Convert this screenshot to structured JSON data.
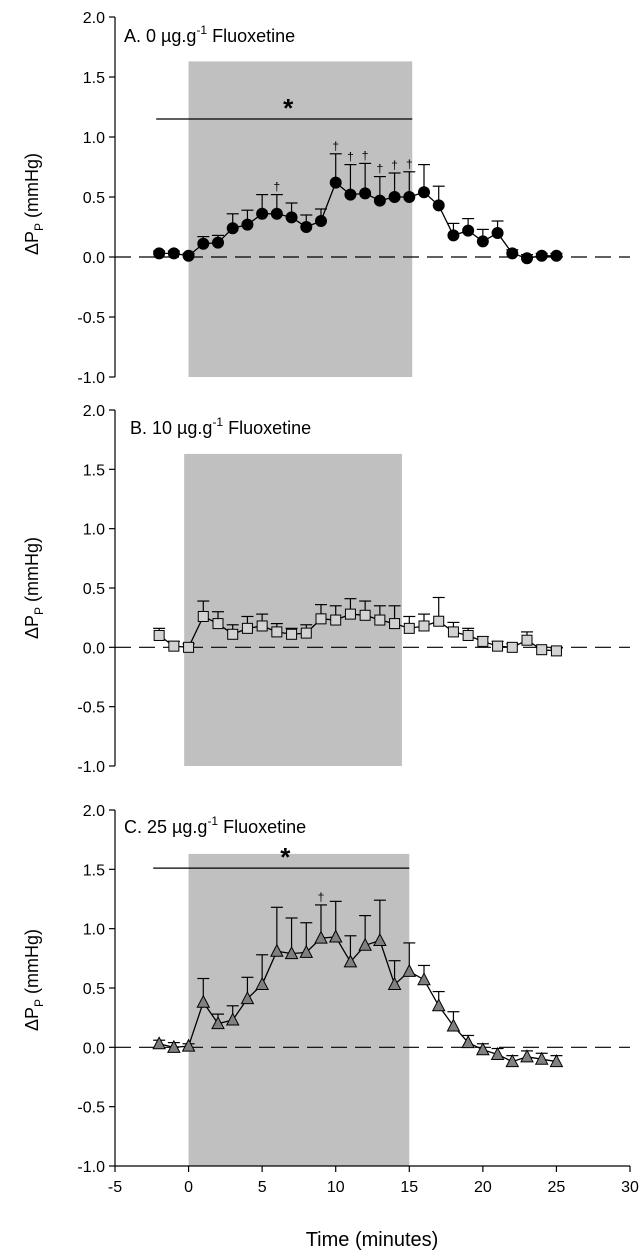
{
  "chart_data": [
    {
      "type": "line",
      "title_prefix": "A. 0 ",
      "title_unit": "µg.g",
      "title_sup": "-1",
      "title_suffix": " Fluoxetine",
      "ylabel_main": "ΔP",
      "ylabel_sub": "P",
      "ylabel_tail": " (mmHg)",
      "ylim": [
        -1.0,
        2.0
      ],
      "yticks": [
        "-1.0",
        "-0.5",
        "0.0",
        "0.5",
        "1.0",
        "1.5",
        "2.0"
      ],
      "shaded_region": [
        0,
        15.2
      ],
      "significance_bar": {
        "x": [
          -2.2,
          15.2
        ],
        "y": 1.15,
        "label": "*"
      },
      "dagger_label": "†",
      "marker": "circle",
      "marker_fill": "#000000",
      "x": [
        -2,
        -1,
        0,
        1,
        2,
        3,
        4,
        5,
        6,
        7,
        8,
        9,
        10,
        11,
        12,
        13,
        14,
        15,
        16,
        17,
        18,
        19,
        20,
        21,
        22,
        23,
        24,
        25
      ],
      "y": [
        0.03,
        0.03,
        0.01,
        0.11,
        0.12,
        0.24,
        0.27,
        0.36,
        0.36,
        0.33,
        0.25,
        0.3,
        0.62,
        0.52,
        0.53,
        0.47,
        0.5,
        0.5,
        0.54,
        0.43,
        0.18,
        0.22,
        0.13,
        0.2,
        0.03,
        -0.01,
        0.01,
        0.01
      ],
      "err": [
        0.02,
        0.02,
        0.02,
        0.06,
        0.06,
        0.12,
        0.12,
        0.16,
        0.16,
        0.12,
        0.1,
        0.1,
        0.24,
        0.25,
        0.25,
        0.2,
        0.2,
        0.21,
        0.23,
        0.16,
        0.1,
        0.1,
        0.1,
        0.1,
        0.03,
        0.03,
        0.02,
        0.02
      ],
      "dagger_x": [
        6,
        10,
        11,
        12,
        13,
        14,
        15
      ]
    },
    {
      "type": "line",
      "title_prefix": "B. 10 ",
      "title_unit": "µg.g",
      "title_sup": "-1",
      "title_suffix": " Fluoxetine",
      "ylabel_main": "ΔP",
      "ylabel_sub": "P",
      "ylabel_tail": " (mmHg)",
      "ylim": [
        -1.0,
        2.0
      ],
      "yticks": [
        "-1.0",
        "-0.5",
        "0.0",
        "0.5",
        "1.0",
        "1.5",
        "2.0"
      ],
      "shaded_region": [
        -0.3,
        14.5
      ],
      "significance_bar": null,
      "marker": "square",
      "marker_fill": "#d3d3d3",
      "x": [
        -2,
        -1,
        0,
        1,
        2,
        3,
        4,
        5,
        6,
        7,
        8,
        9,
        10,
        11,
        12,
        13,
        14,
        15,
        16,
        17,
        18,
        19,
        20,
        21,
        22,
        23,
        24,
        25
      ],
      "y": [
        0.1,
        0.01,
        0.0,
        0.26,
        0.2,
        0.11,
        0.16,
        0.18,
        0.13,
        0.11,
        0.12,
        0.24,
        0.23,
        0.28,
        0.27,
        0.23,
        0.2,
        0.16,
        0.18,
        0.22,
        0.13,
        0.1,
        0.05,
        0.01,
        0.0,
        0.06,
        -0.02,
        -0.03
      ],
      "err": [
        0.06,
        0.04,
        0.03,
        0.13,
        0.1,
        0.08,
        0.1,
        0.1,
        0.07,
        0.05,
        0.07,
        0.12,
        0.12,
        0.13,
        0.12,
        0.12,
        0.15,
        0.1,
        0.1,
        0.2,
        0.08,
        0.06,
        0.04,
        0.04,
        0.03,
        0.07,
        0.02,
        0.02
      ],
      "dagger_x": []
    },
    {
      "type": "line",
      "title_prefix": "C. 25 ",
      "title_unit": "µg.g",
      "title_sup": "-1",
      "title_suffix": " Fluoxetine",
      "ylabel_main": "ΔP",
      "ylabel_sub": "P",
      "ylabel_tail": " (mmHg)",
      "ylim": [
        -1.0,
        2.0
      ],
      "yticks": [
        "-1.0",
        "-0.5",
        "0.0",
        "0.5",
        "1.0",
        "1.5",
        "2.0"
      ],
      "xlim": [
        -5,
        30
      ],
      "xticks": [
        "-5",
        "0",
        "5",
        "10",
        "15",
        "20",
        "25",
        "30"
      ],
      "xlabel": "Time (minutes)",
      "shaded_region": [
        0,
        15
      ],
      "significance_bar": {
        "x": [
          -2.4,
          15
        ],
        "y": 1.51,
        "label": "*"
      },
      "dagger_label": "†",
      "marker": "triangle",
      "marker_fill": "#808080",
      "x": [
        -2,
        -1,
        0,
        1,
        2,
        3,
        4,
        5,
        6,
        7,
        8,
        9,
        10,
        11,
        12,
        13,
        14,
        15,
        16,
        17,
        18,
        19,
        20,
        21,
        22,
        23,
        24,
        25
      ],
      "y": [
        0.03,
        0.0,
        0.01,
        0.38,
        0.2,
        0.23,
        0.41,
        0.53,
        0.81,
        0.79,
        0.8,
        0.92,
        0.93,
        0.72,
        0.86,
        0.9,
        0.53,
        0.64,
        0.57,
        0.35,
        0.18,
        0.04,
        -0.02,
        -0.06,
        -0.12,
        -0.08,
        -0.1,
        -0.12
      ],
      "err": [
        0.03,
        0.04,
        0.02,
        0.2,
        0.08,
        0.12,
        0.18,
        0.25,
        0.37,
        0.3,
        0.25,
        0.28,
        0.3,
        0.22,
        0.25,
        0.34,
        0.2,
        0.24,
        0.12,
        0.12,
        0.12,
        0.06,
        0.05,
        0.05,
        0.05,
        0.05,
        0.05,
        0.05
      ],
      "dagger_x": [
        9
      ]
    }
  ]
}
